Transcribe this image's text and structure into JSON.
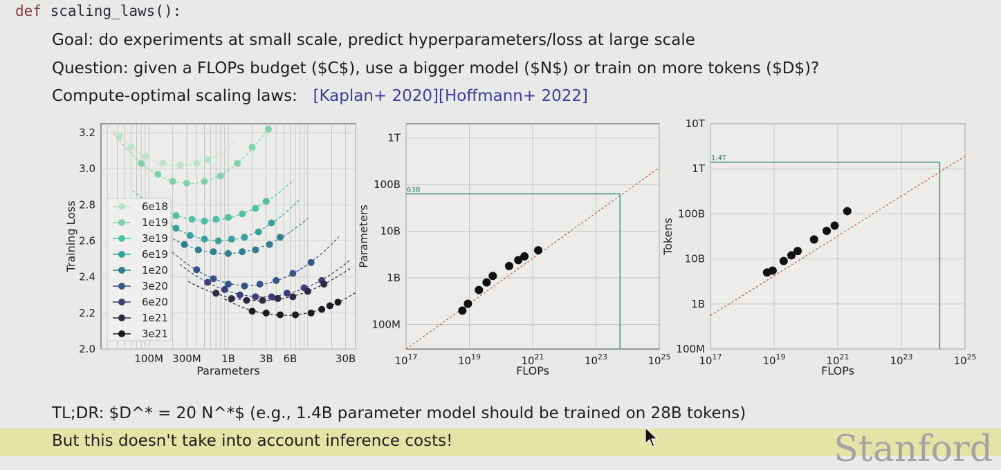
{
  "code": {
    "keyword": "def",
    "signature": "scaling_laws():"
  },
  "lines": {
    "goal": "Goal: do experiments at small scale, predict hyperparameters/loss at large scale",
    "question": "Question: given a FLOPs budget ($C$), use a bigger model ($N$) or train on more tokens ($D$)?",
    "laws_label": "Compute-optimal scaling laws:",
    "link_kaplan": "[Kaplan+ 2020]",
    "link_hoffmann": "[Hoffmann+ 2022]",
    "tldr": "TL;DR: $D^* = 20 N^*$ (e.g., 1.4B parameter model should be trained on 28B tokens)",
    "inference": "But this doesn't take into account inference costs!"
  },
  "logo": "Stanford",
  "colors": {
    "highlight": "#e2e5a6",
    "link": "#3d3d9e",
    "fit_line": "#c0504d",
    "ref_line": "#3a8f7a"
  },
  "chart_data": [
    {
      "type": "line",
      "xlabel": "Parameters",
      "ylabel": "Training Loss",
      "x_scale": "log",
      "xlim": [
        25000000,
        40000000000
      ],
      "ylim": [
        2.0,
        3.25
      ],
      "x_ticks": [
        "100M",
        "300M",
        "1B",
        "3B",
        "6B",
        "30B"
      ],
      "x_tick_values": [
        100000000,
        300000000,
        1000000000,
        3000000000,
        6000000000,
        30000000000
      ],
      "y_ticks": [
        "2.0",
        "2.2",
        "2.4",
        "2.6",
        "2.8",
        "3.0",
        "3.2"
      ],
      "y_tick_values": [
        2.0,
        2.2,
        2.4,
        2.6,
        2.8,
        3.0,
        3.2
      ],
      "grid": true,
      "legend_position": "left",
      "series": [
        {
          "name": "6e18",
          "color": "#b9e3cc",
          "x": [
            43000000,
            60000000,
            90000000,
            150000000,
            250000000,
            400000000,
            550000000
          ],
          "y": [
            3.18,
            3.12,
            3.07,
            3.03,
            3.02,
            3.03,
            3.05
          ]
        },
        {
          "name": "1e19",
          "color": "#7fd1b0",
          "x": [
            80000000,
            130000000,
            200000000,
            300000000,
            500000000,
            800000000,
            1300000000,
            2000000000,
            3200000000
          ],
          "y": [
            3.03,
            2.97,
            2.93,
            2.92,
            2.93,
            2.96,
            3.03,
            3.12,
            3.22
          ]
        },
        {
          "name": "3e19",
          "color": "#4fc0a3",
          "x": [
            140000000,
            220000000,
            350000000,
            500000000,
            700000000,
            1000000000,
            1500000000,
            2200000000,
            3000000000
          ],
          "y": [
            2.78,
            2.74,
            2.72,
            2.71,
            2.72,
            2.73,
            2.75,
            2.78,
            2.82
          ]
        },
        {
          "name": "6e19",
          "color": "#35a39a",
          "x": [
            220000000,
            330000000,
            500000000,
            750000000,
            1100000000,
            1600000000,
            2400000000,
            3500000000
          ],
          "y": [
            2.67,
            2.63,
            2.61,
            2.6,
            2.61,
            2.62,
            2.65,
            2.7
          ]
        },
        {
          "name": "1e20",
          "color": "#2f7f93",
          "x": [
            280000000,
            420000000,
            650000000,
            1000000000,
            1500000000,
            2200000000,
            3300000000,
            4500000000
          ],
          "y": [
            2.58,
            2.55,
            2.54,
            2.53,
            2.54,
            2.55,
            2.58,
            2.62
          ]
        },
        {
          "name": "3e20",
          "color": "#35558a",
          "x": [
            400000000,
            650000000,
            1000000000,
            1600000000,
            2500000000,
            4000000000,
            6500000000,
            11000000000
          ],
          "y": [
            2.44,
            2.39,
            2.36,
            2.35,
            2.36,
            2.38,
            2.42,
            2.48
          ]
        },
        {
          "name": "6e20",
          "color": "#3a3f77",
          "x": [
            550000000,
            900000000,
            1400000000,
            2200000000,
            3500000000,
            5500000000,
            9000000000,
            15000000000
          ],
          "y": [
            2.37,
            2.33,
            2.3,
            2.29,
            2.29,
            2.31,
            2.34,
            2.38
          ]
        },
        {
          "name": "1e21",
          "color": "#30283f",
          "x": [
            700000000,
            1100000000,
            1700000000,
            2700000000,
            4200000000,
            6500000000,
            10000000000,
            16000000000
          ],
          "y": [
            2.31,
            2.28,
            2.27,
            2.27,
            2.28,
            2.29,
            2.32,
            2.36
          ]
        },
        {
          "name": "3e21",
          "color": "#1c1a22",
          "x": [
            2000000000,
            3000000000,
            4500000000,
            7000000000,
            11000000000,
            15000000000,
            19000000000,
            24000000000
          ],
          "y": [
            2.21,
            2.2,
            2.19,
            2.19,
            2.2,
            2.22,
            2.24,
            2.26
          ]
        }
      ]
    },
    {
      "type": "scatter",
      "xlabel": "FLOPs",
      "ylabel": "Parameters",
      "x_scale": "log",
      "y_scale": "log",
      "xlim": [
        1e+17,
        1e+25
      ],
      "ylim": [
        30000000,
        2000000000000
      ],
      "x_ticks": [
        "10^17",
        "10^19",
        "10^21",
        "10^23",
        "10^25"
      ],
      "x_tick_values": [
        1e+17,
        1e+19,
        1e+21,
        1e+23,
        1e+25
      ],
      "y_ticks": [
        "100M",
        "1B",
        "10B",
        "100B",
        "1T"
      ],
      "y_tick_values": [
        100000000,
        1000000000,
        10000000000,
        100000000000,
        1000000000000
      ],
      "grid": true,
      "annotation": "63B",
      "annotation_value": 63000000000,
      "reference_x": 5.76e+23,
      "points": {
        "x": [
          6e+18,
          9e+18,
          2e+19,
          3.5e+19,
          5.5e+19,
          1.8e+20,
          3.5e+20,
          5.5e+20,
          1.5e+21
        ],
        "y": [
          200000000,
          280000000,
          550000000,
          800000000,
          1100000000,
          1800000000,
          2400000000,
          2900000000,
          3900000000
        ]
      },
      "fit_line": {
        "x": [
          1e+17,
          1e+25
        ],
        "y": [
          30000000,
          230000000000
        ]
      }
    },
    {
      "type": "scatter",
      "xlabel": "FLOPs",
      "ylabel": "Tokens",
      "x_scale": "log",
      "y_scale": "log",
      "xlim": [
        1e+17,
        1e+25
      ],
      "ylim": [
        100000000,
        10000000000000
      ],
      "x_ticks": [
        "10^17",
        "10^19",
        "10^21",
        "10^23",
        "10^25"
      ],
      "x_tick_values": [
        1e+17,
        1e+19,
        1e+21,
        1e+23,
        1e+25
      ],
      "y_ticks": [
        "100M",
        "1B",
        "10B",
        "100B",
        "1T",
        "10T"
      ],
      "y_tick_values": [
        100000000,
        1000000000,
        10000000000,
        100000000000,
        1000000000000,
        10000000000000
      ],
      "grid": true,
      "annotation": "1.4T",
      "annotation_value": 1400000000000,
      "reference_x": 1.6e+24,
      "points": {
        "x": [
          6e+18,
          9e+18,
          2e+19,
          3.5e+19,
          5.5e+19,
          1.8e+20,
          4.5e+20,
          8e+20,
          2e+21
        ],
        "y": [
          5000000000,
          5500000000,
          9000000000,
          12000000000,
          15000000000,
          27000000000,
          42000000000,
          55000000000,
          115000000000
        ]
      },
      "fit_line": {
        "x": [
          1e+17,
          1e+25
        ],
        "y": [
          550000000,
          1900000000000
        ]
      }
    }
  ]
}
